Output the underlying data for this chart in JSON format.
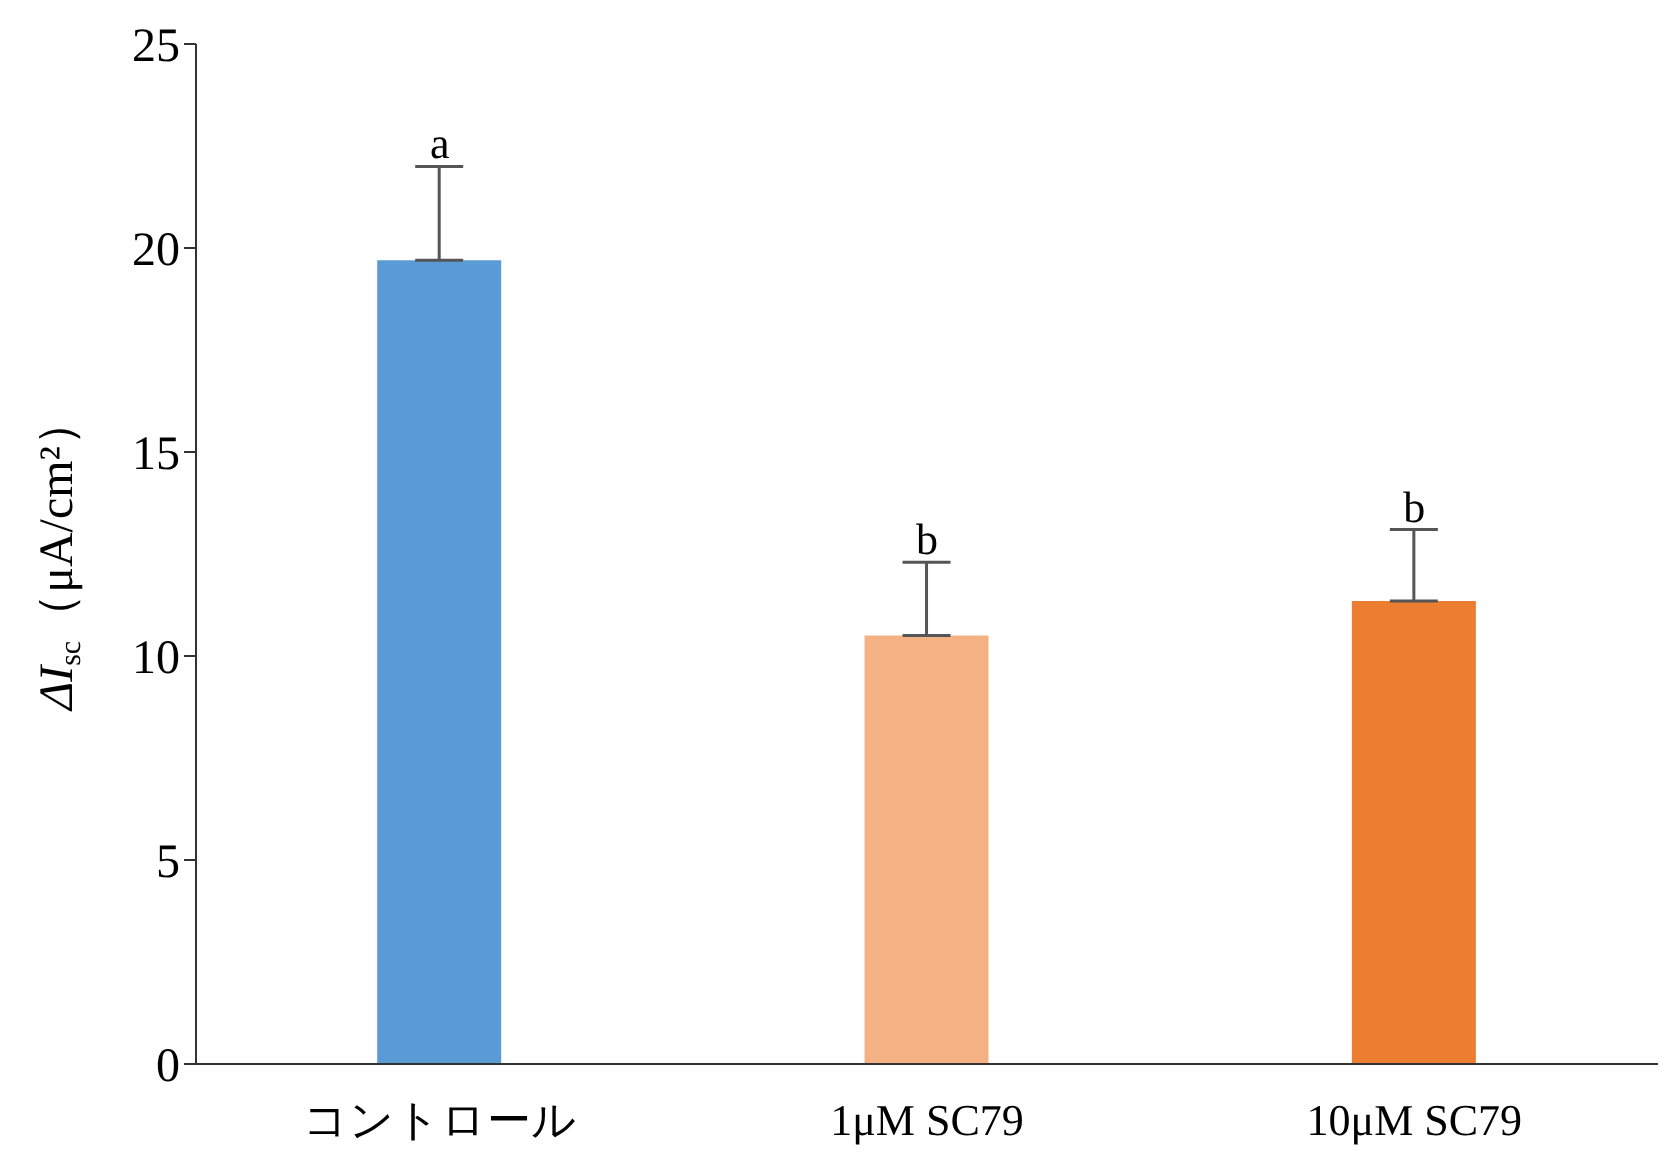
{
  "chart_data": {
    "type": "bar",
    "ylabel": "ΔI$_{sc}$（μA/cm²）",
    "categories": [
      "コントロール",
      "1μM SC79",
      "10μM SC79"
    ],
    "values": [
      19.7,
      10.5,
      11.35
    ],
    "colors": [
      "#5b9bd5",
      "#f4b183",
      "#ed7d31"
    ],
    "errors": [
      [
        19.7,
        22.0
      ],
      [
        10.5,
        12.3
      ],
      [
        11.35,
        13.1
      ]
    ],
    "ylim": [
      0,
      25
    ],
    "yticks": [
      0,
      5,
      10,
      15,
      20,
      25
    ],
    "annotations": [
      {
        "text": "a",
        "x": "コントロール",
        "y": 22.0
      },
      {
        "text": "b",
        "x": "1μM SC79",
        "y": 12.3
      },
      {
        "text": "b",
        "x": "10μM SC79",
        "y": 13.1
      }
    ],
    "grid": false,
    "legend": false
  }
}
